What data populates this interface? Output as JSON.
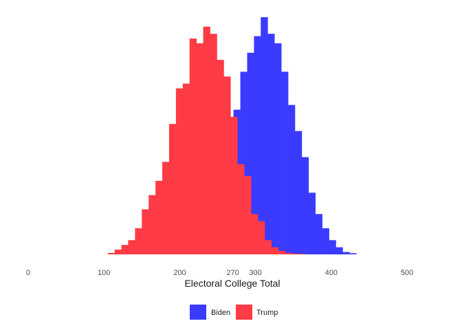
{
  "chart_data": {
    "type": "histogram",
    "title": "",
    "xlabel": "Electoral College Total",
    "ylabel": "",
    "xlim": [
      0,
      500
    ],
    "x_ticks": [
      0,
      100,
      200,
      270,
      300,
      400,
      500
    ],
    "x_tick_labels": [
      "0",
      "100",
      "200",
      "270",
      "300",
      "400",
      "500"
    ],
    "grid": false,
    "bin_width": 9,
    "count_max": 100,
    "legend": {
      "position": "bottom",
      "entries": [
        "Biden",
        "Trump"
      ]
    },
    "colors": {
      "Biden": "#3b3bff",
      "Trump": "#ff3b46",
      "overlap": "#cc1144"
    },
    "series": [
      {
        "name": "Biden",
        "bin_starts": [
          181,
          190,
          199,
          208,
          217,
          226,
          235,
          244,
          253,
          262,
          271,
          280,
          289,
          298,
          307,
          316,
          325,
          334,
          343,
          352,
          361,
          370,
          379,
          388,
          397,
          406,
          415,
          424
        ],
        "counts": [
          0.3,
          0.7,
          1.4,
          2.1,
          3.1,
          4.5,
          7,
          13,
          20,
          37,
          61,
          77,
          85,
          92,
          100,
          93,
          89,
          77,
          63,
          52,
          41,
          26,
          17,
          11,
          6,
          3,
          1,
          0.5
        ]
      },
      {
        "name": "Trump",
        "bin_starts": [
          105,
          114,
          123,
          132,
          141,
          150,
          159,
          168,
          177,
          186,
          195,
          204,
          213,
          222,
          231,
          240,
          249,
          258,
          267,
          276,
          285,
          294,
          303,
          312,
          321,
          330,
          339,
          348,
          357
        ],
        "counts": [
          0.6,
          2,
          4,
          6,
          11,
          19,
          25,
          31,
          39,
          55,
          70,
          72,
          91,
          89,
          96,
          93,
          82,
          75,
          58,
          38,
          33,
          17,
          14,
          6,
          3,
          1.5,
          0.6,
          0.3,
          0.2
        ]
      }
    ]
  }
}
